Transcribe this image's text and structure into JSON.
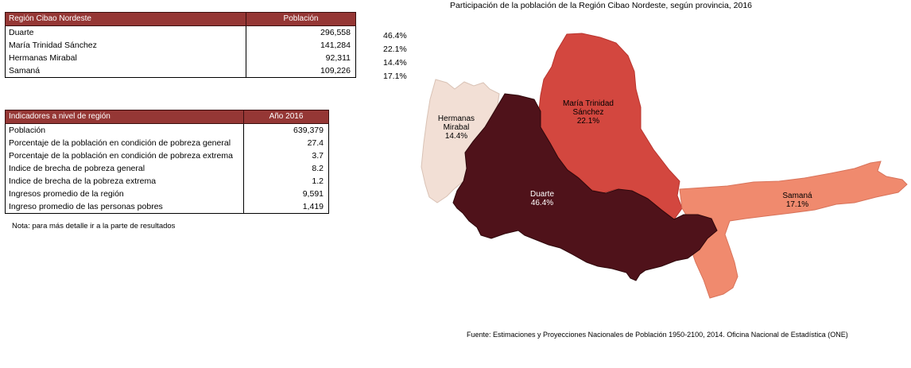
{
  "table1": {
    "headers": [
      "Región Cibao Nordeste",
      "Población"
    ],
    "rows": [
      {
        "name": "Duarte",
        "value": "296,558",
        "pct": "46.4%"
      },
      {
        "name": "María Trinidad Sánchez",
        "value": "141,284",
        "pct": "22.1%"
      },
      {
        "name": "Hermanas Mirabal",
        "value": "92,311",
        "pct": "14.4%"
      },
      {
        "name": "Samaná",
        "value": "109,226",
        "pct": "17.1%"
      }
    ]
  },
  "table2": {
    "headers": [
      "Indicadores a nivel de región",
      "Año 2016"
    ],
    "rows": [
      {
        "name": "Población",
        "value": "639,379"
      },
      {
        "name": "Porcentaje de la población en condición de pobreza general",
        "value": "27.4"
      },
      {
        "name": "Porcentaje de la población en condición de pobreza extrema",
        "value": "3.7"
      },
      {
        "name": "Indice de brecha de pobreza general",
        "value": "8.2"
      },
      {
        "name": "Indice de  brecha de la pobreza extrema",
        "value": "1.2"
      },
      {
        "name": "Ingresos promedio de la región",
        "value": "9,591"
      },
      {
        "name": "Ingreso promedio de las personas pobres",
        "value": "1,419"
      }
    ]
  },
  "note": "Nota: para más detalle ir a la parte de resultados",
  "map": {
    "title": "Participación de la población de la Región Cibao Nordeste, según provincia, 2016",
    "source": "Fuente: Estimaciones y Proyecciones Nacionales de Población 1950-2100, 2014. Oficina Nacional de Estadística (ONE)",
    "regions": [
      {
        "id": "hermanas",
        "label_lines": [
          "Hermanas",
          "Mirabal",
          "14.4%"
        ],
        "color": "#f2dfd5",
        "text_color": "#000000"
      },
      {
        "id": "mts",
        "label_lines": [
          "María Trinidad",
          "Sánchez",
          "22.1%"
        ],
        "color": "#d3473f",
        "text_color": "#000000"
      },
      {
        "id": "samana",
        "label_lines": [
          "Samaná",
          "17.1%"
        ],
        "color": "#f08a6e",
        "text_color": "#000000"
      },
      {
        "id": "duarte",
        "label_lines": [
          "Duarte",
          "46.4%"
        ],
        "color": "#4f121a",
        "text_color": "#ffffff"
      }
    ]
  }
}
